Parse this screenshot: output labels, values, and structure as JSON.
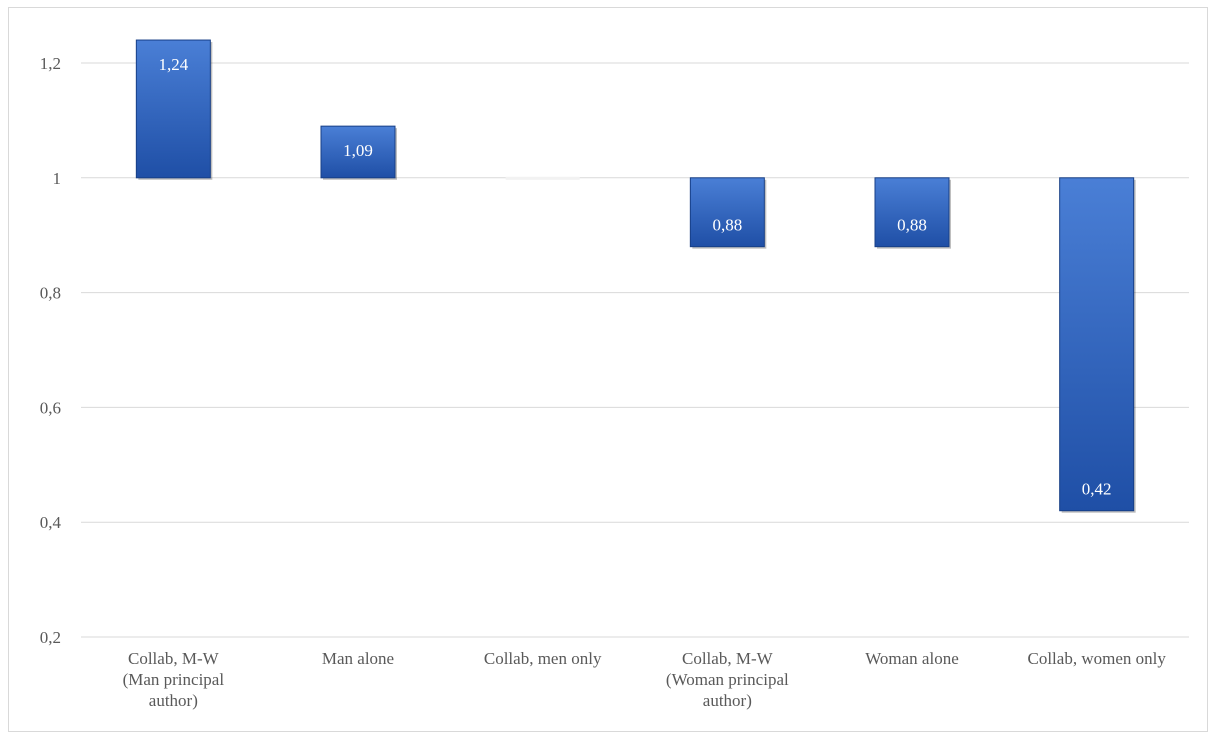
{
  "chart_data": {
    "type": "bar",
    "baseline": 1,
    "categories": [
      [
        "Collab, M-W",
        "(Man principal",
        "author)"
      ],
      [
        "Man alone"
      ],
      [
        "Collab, men only"
      ],
      [
        "Collab, M-W",
        "(Woman principal",
        "author)"
      ],
      [
        "Woman alone"
      ],
      [
        "Collab, women only"
      ]
    ],
    "values": [
      1.24,
      1.09,
      1.0,
      0.88,
      0.88,
      0.42
    ],
    "value_labels": [
      "1,24",
      "1,09",
      "",
      "0,88",
      "0,88",
      "0,42"
    ],
    "ylim": [
      0.2,
      1.3
    ],
    "yticks": [
      0.2,
      0.4,
      0.6,
      0.8,
      1,
      1.2
    ],
    "ytick_labels": [
      "0,2",
      "0,4",
      "0,6",
      "0,8",
      "1",
      "1,2"
    ],
    "title": "",
    "xlabel": "",
    "ylabel": "",
    "grid": true,
    "colors": {
      "bar_top": "#4a7fd6",
      "bar_bottom": "#1f4fa6",
      "bar_edge": "#173f87",
      "grid": "#d9d9d9",
      "text": "#595959",
      "label": "#ffffff"
    }
  }
}
